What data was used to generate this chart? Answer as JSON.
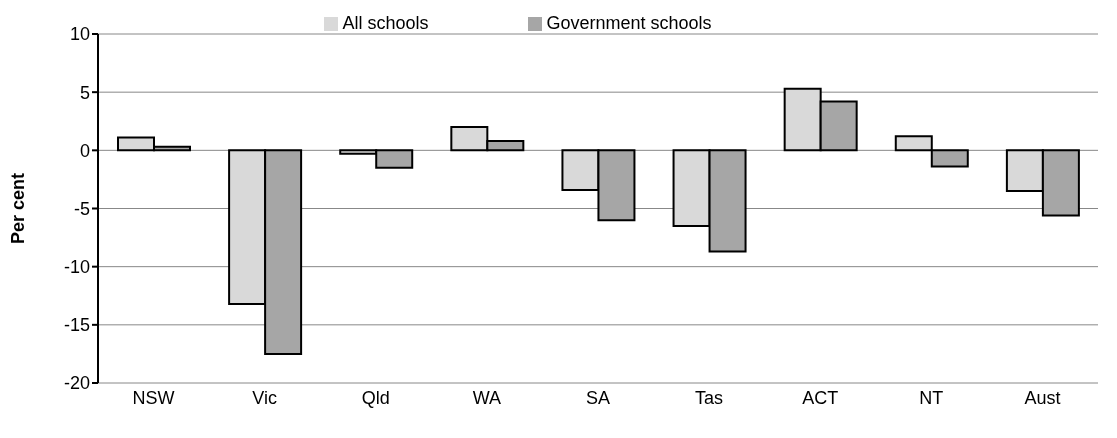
{
  "chart_data": {
    "type": "bar",
    "ylabel": "Per cent",
    "categories": [
      "NSW",
      "Vic",
      "Qld",
      "WA",
      "SA",
      "Tas",
      "ACT",
      "NT",
      "Aust"
    ],
    "series": [
      {
        "name": "All schools",
        "color": "#d9d9d9",
        "values": [
          1.1,
          -13.2,
          -0.3,
          2.0,
          -3.4,
          -6.5,
          5.3,
          1.2,
          -3.5
        ]
      },
      {
        "name": "Government schools",
        "color": "#a6a6a6",
        "values": [
          0.3,
          -17.5,
          -1.5,
          0.8,
          -6.0,
          -8.7,
          4.2,
          -1.4,
          -5.6
        ]
      }
    ],
    "ylim": [
      -20,
      10
    ],
    "yticks": [
      -20,
      -15,
      -10,
      -5,
      0,
      5,
      10
    ],
    "grid": "y",
    "legend": "top"
  }
}
